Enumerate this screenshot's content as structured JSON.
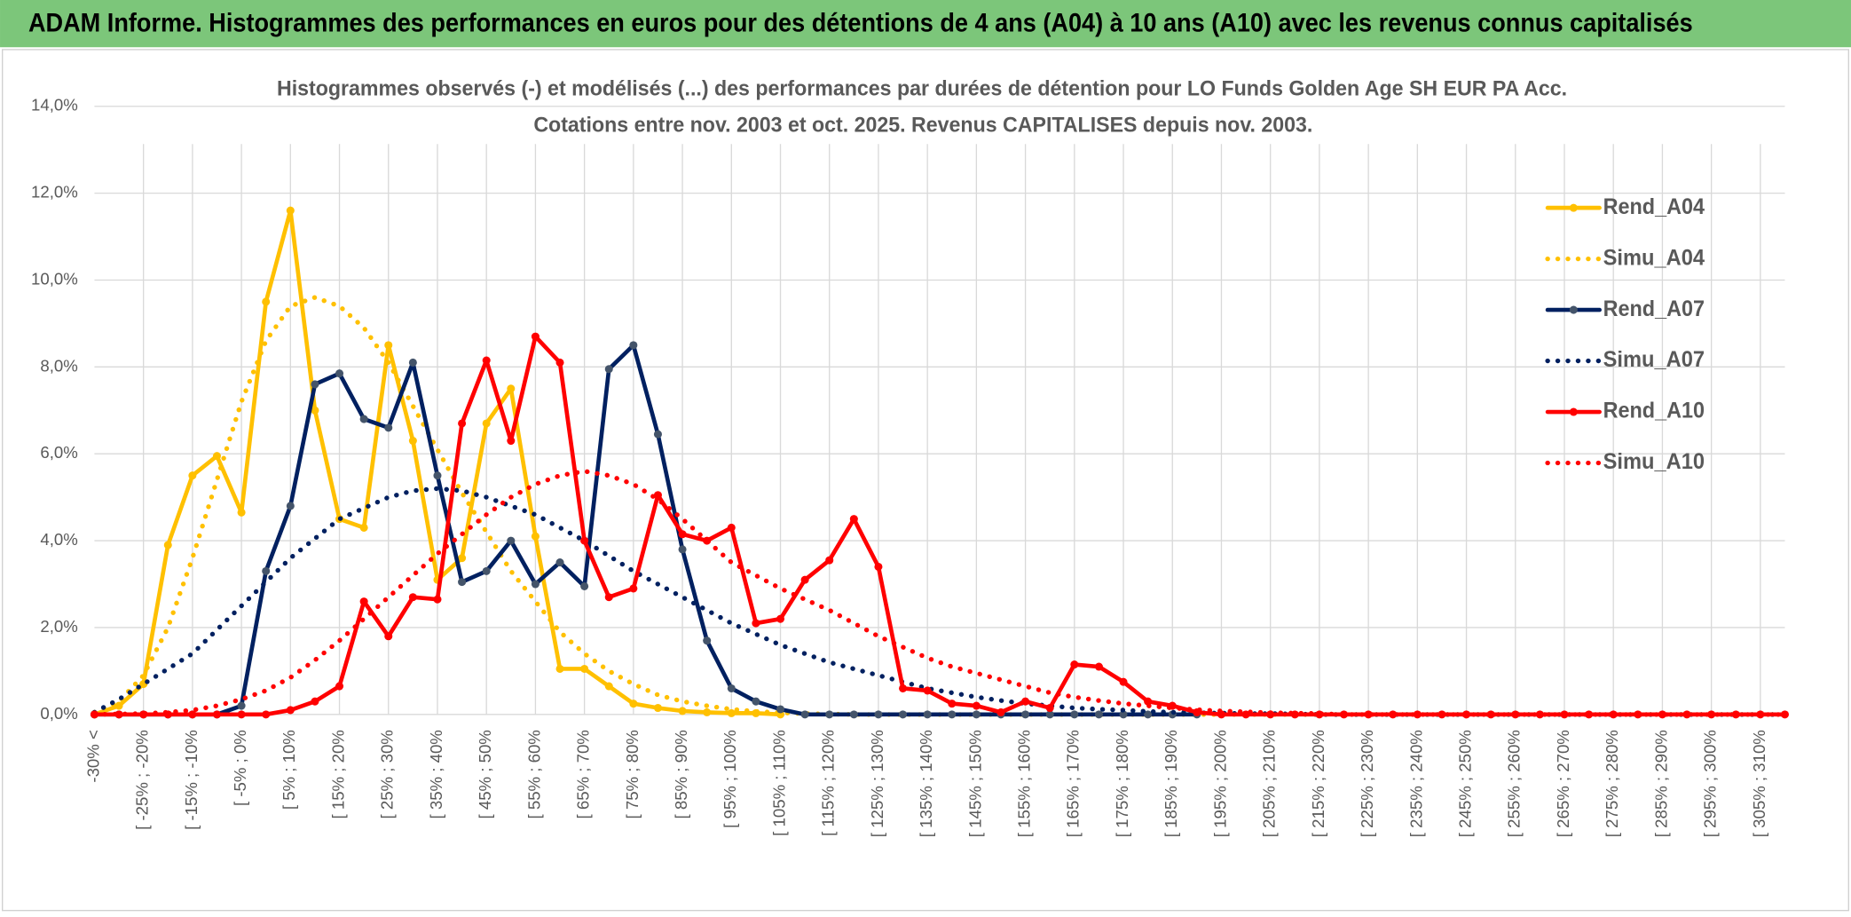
{
  "page_title": "ADAM Informe. Histogrammes des performances en euros pour des détentions de 4 ans (A04) à 10 ans (A10) avec les revenus connus capitalisés",
  "chart_data": {
    "type": "line",
    "title": "Histogrammes observés (-) et modélisés (...) des performances par durées de détention pour LO Funds Golden Age SH EUR PA Acc.",
    "subtitle": "Cotations entre nov. 2003 et oct. 2025. Revenus CAPITALISES depuis nov. 2003.",
    "categories": [
      "-30% <",
      null,
      "[ -25% ; -20%",
      null,
      "[ -15% ; -10%",
      null,
      "[ -5% ; 0%",
      null,
      "[ 5% ; 10%",
      null,
      "[ 15% ; 20%",
      null,
      "[ 25% ; 30%",
      null,
      "[ 35% ; 40%",
      null,
      "[ 45% ; 50%",
      null,
      "[ 55% ; 60%",
      null,
      "[ 65% ; 70%",
      null,
      "[ 75% ; 80%",
      null,
      "[ 85% ; 90%",
      null,
      "[ 95% ; 100%",
      null,
      "[ 105% ; 110%",
      null,
      "[ 115% ; 120%",
      null,
      "[ 125% ; 130%",
      null,
      "[ 135% ; 140%",
      null,
      "[ 145% ; 150%",
      null,
      "[ 155% ; 160%",
      null,
      "[ 165% ; 170%",
      null,
      "[ 175% ; 180%",
      null,
      "[ 185% ; 190%",
      null,
      "[ 195% ; 200%",
      null,
      "[ 205% ; 210%",
      null,
      "[ 215% ; 220%",
      null,
      "[ 225% ; 230%",
      null,
      "[ 235% ; 240%",
      null,
      "[ 245% ; 250%",
      null,
      "[ 255% ; 260%",
      null,
      "[ 265% ; 270%",
      null,
      "[ 275% ; 280%",
      null,
      "[ 285% ; 290%",
      null,
      "[ 295% ; 300%",
      null,
      "[ 305% ; 310%",
      null
    ],
    "series": [
      {
        "name": "Rend_A04",
        "color": "#ffc000",
        "dotted": false,
        "marker_color": "#ffc000",
        "values": [
          0,
          0.2,
          0.7,
          3.9,
          5.5,
          5.95,
          4.65,
          9.5,
          11.6,
          7.0,
          4.5,
          4.3,
          8.5,
          6.3,
          3.1,
          3.6,
          6.7,
          7.5,
          4.1,
          1.05,
          1.05,
          0.65,
          0.25,
          0.15,
          0.08,
          0.05,
          0.03,
          0.03,
          0,
          null,
          null,
          null,
          null,
          null,
          null,
          null,
          null,
          null,
          null,
          null,
          null,
          null,
          null,
          null,
          null,
          null,
          null,
          null,
          null,
          null,
          null,
          null,
          null,
          null,
          null,
          null,
          null,
          null,
          null,
          null,
          null,
          null,
          null,
          null,
          null,
          null,
          null,
          null,
          null,
          null
        ]
      },
      {
        "name": "Simu_A04",
        "color": "#ffc000",
        "dotted": true,
        "values": [
          0.05,
          0.3,
          0.9,
          2.0,
          3.6,
          5.4,
          7.2,
          8.6,
          9.4,
          9.6,
          9.4,
          8.9,
          8.1,
          7.1,
          6.1,
          5.1,
          4.2,
          3.3,
          2.6,
          1.9,
          1.4,
          1.0,
          0.7,
          0.45,
          0.3,
          0.2,
          0.12,
          0.07,
          0.04,
          0.02,
          0.01,
          0,
          0,
          0,
          0,
          0,
          0,
          0,
          0,
          0,
          0,
          0,
          0,
          0,
          0,
          0,
          0,
          0,
          0,
          0,
          0,
          0,
          0,
          0,
          0,
          0,
          0,
          0,
          0,
          0,
          0,
          0,
          0,
          0,
          0,
          0,
          0,
          0,
          0,
          0
        ]
      },
      {
        "name": "Rend_A07",
        "color": "#002060",
        "dotted": false,
        "marker_color": "#44546a",
        "values": [
          0,
          0,
          0,
          0,
          0,
          0,
          0.2,
          3.3,
          4.8,
          7.6,
          7.85,
          6.8,
          6.6,
          8.1,
          5.5,
          3.05,
          3.3,
          4.0,
          3.0,
          3.5,
          2.95,
          7.95,
          8.5,
          6.45,
          3.8,
          1.7,
          0.6,
          0.3,
          0.12,
          0,
          0,
          0,
          0,
          0,
          0,
          0,
          0,
          0,
          0,
          0,
          0,
          0,
          0,
          0,
          0,
          0,
          null,
          null,
          null,
          null,
          null,
          null,
          null,
          null,
          null,
          null,
          null,
          null,
          null,
          null,
          null,
          null,
          null,
          null,
          null,
          null,
          null,
          null,
          null,
          null
        ]
      },
      {
        "name": "Simu_A07",
        "color": "#002060",
        "dotted": true,
        "values": [
          0.05,
          0.35,
          0.7,
          1.05,
          1.4,
          1.95,
          2.5,
          3.05,
          3.6,
          4.05,
          4.5,
          4.75,
          5.0,
          5.15,
          5.2,
          5.15,
          5.0,
          4.8,
          4.6,
          4.3,
          4.0,
          3.65,
          3.3,
          3.0,
          2.7,
          2.4,
          2.1,
          1.85,
          1.6,
          1.4,
          1.2,
          1.05,
          0.9,
          0.75,
          0.6,
          0.5,
          0.4,
          0.32,
          0.25,
          0.2,
          0.15,
          0.12,
          0.1,
          0.07,
          0.05,
          0.04,
          0.03,
          0.02,
          0.02,
          0.01,
          0,
          0,
          0,
          0,
          0,
          0,
          0,
          0,
          0,
          0,
          0,
          0,
          0,
          0,
          0,
          0,
          0,
          0,
          0,
          0
        ]
      },
      {
        "name": "Rend_A10",
        "color": "#ff0000",
        "dotted": false,
        "marker_color": "#ff0000",
        "values": [
          0,
          0,
          0,
          0,
          0,
          0,
          0,
          0,
          0.1,
          0.3,
          0.65,
          2.6,
          1.8,
          2.7,
          2.65,
          6.7,
          8.15,
          6.3,
          8.7,
          8.1,
          4.0,
          2.7,
          2.9,
          5.05,
          4.15,
          4.0,
          4.3,
          2.1,
          2.2,
          3.1,
          3.55,
          4.5,
          3.4,
          0.6,
          0.55,
          0.25,
          0.2,
          0.05,
          0.3,
          0.15,
          1.15,
          1.1,
          0.75,
          0.3,
          0.2,
          0.05,
          0,
          0,
          0,
          0,
          0,
          0,
          0,
          0,
          0,
          0,
          0,
          0,
          0,
          0,
          0,
          0,
          0,
          0,
          0,
          0,
          0,
          0,
          0,
          0
        ]
      },
      {
        "name": "Simu_A10",
        "color": "#ff0000",
        "dotted": true,
        "values": [
          0,
          0.01,
          0.02,
          0.05,
          0.1,
          0.2,
          0.35,
          0.55,
          0.85,
          1.25,
          1.7,
          2.2,
          2.7,
          3.2,
          3.7,
          4.15,
          4.6,
          5.0,
          5.3,
          5.5,
          5.6,
          5.5,
          5.3,
          4.95,
          4.5,
          4.0,
          3.5,
          3.2,
          2.9,
          2.65,
          2.4,
          2.1,
          1.8,
          1.55,
          1.3,
          1.1,
          0.95,
          0.8,
          0.65,
          0.5,
          0.4,
          0.32,
          0.25,
          0.2,
          0.15,
          0.11,
          0.08,
          0.06,
          0.04,
          0.03,
          0.02,
          0,
          0,
          0,
          0,
          0,
          0,
          0,
          0,
          0,
          0,
          0,
          0,
          0,
          0,
          0,
          0,
          0,
          0,
          0
        ]
      }
    ],
    "ylim": [
      0,
      14
    ],
    "yticks": [
      {
        "value": 0,
        "label": "0,0%"
      },
      {
        "value": 2,
        "label": "2,0%"
      },
      {
        "value": 4,
        "label": "4,0%"
      },
      {
        "value": 6,
        "label": "6,0%"
      },
      {
        "value": 8,
        "label": "8,0%"
      },
      {
        "value": 10,
        "label": "10,0%"
      },
      {
        "value": 12,
        "label": "12,0%"
      },
      {
        "value": 14,
        "label": "14,0%"
      }
    ],
    "grid": true,
    "legend": "right"
  }
}
